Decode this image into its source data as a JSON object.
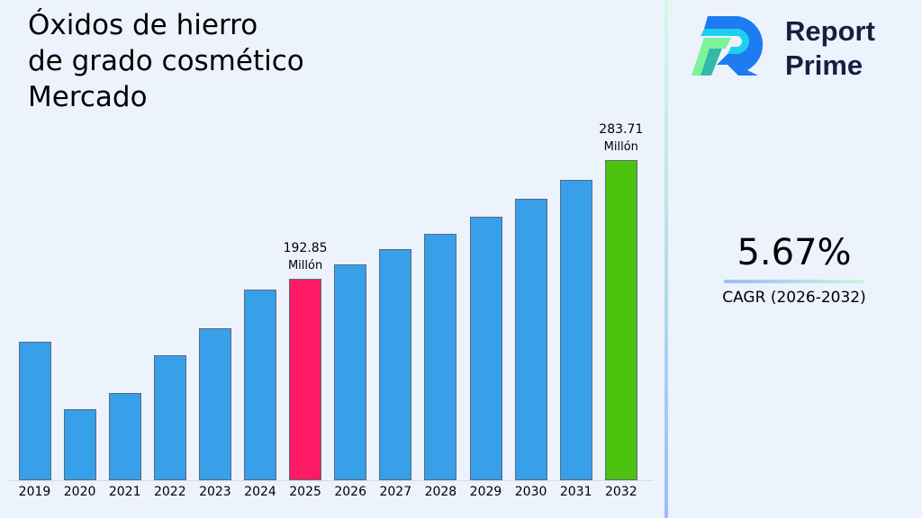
{
  "title": {
    "lines": [
      "Óxidos de hierro",
      "de grado cosmético",
      "Mercado"
    ]
  },
  "brand": {
    "name_line1": "Report",
    "name_line2": "Prime"
  },
  "cagr": {
    "value": "5.67%",
    "label": "CAGR (2026-2032)"
  },
  "colors": {
    "bar_default": "#37a0e9",
    "bar_base_year": "#ff1a66",
    "bar_final_year": "#4cc20e",
    "background": "#edf3fd",
    "brand_text": "#13213f"
  },
  "chart_data": {
    "type": "bar",
    "title": "Óxidos de hierro de grado cosmético Mercado",
    "xlabel": "",
    "ylabel": "",
    "grid": false,
    "legend": "none",
    "categories": [
      "2019",
      "2020",
      "2021",
      "2022",
      "2023",
      "2024",
      "2025",
      "2026",
      "2027",
      "2028",
      "2029",
      "2030",
      "2031",
      "2032"
    ],
    "values": [
      144.7,
      93.1,
      105.4,
      134.3,
      155.0,
      184.6,
      192.85,
      203.8,
      215.3,
      227.5,
      240.4,
      254.1,
      268.5,
      283.71
    ],
    "annotations": [
      {
        "category": "2025",
        "value": "192.85",
        "unit": "Millón"
      },
      {
        "category": "2032",
        "value": "283.71",
        "unit": "Millón"
      }
    ],
    "highlight": {
      "2025": "#ff1a66",
      "2032": "#4cc20e"
    },
    "unit": "Millón"
  }
}
